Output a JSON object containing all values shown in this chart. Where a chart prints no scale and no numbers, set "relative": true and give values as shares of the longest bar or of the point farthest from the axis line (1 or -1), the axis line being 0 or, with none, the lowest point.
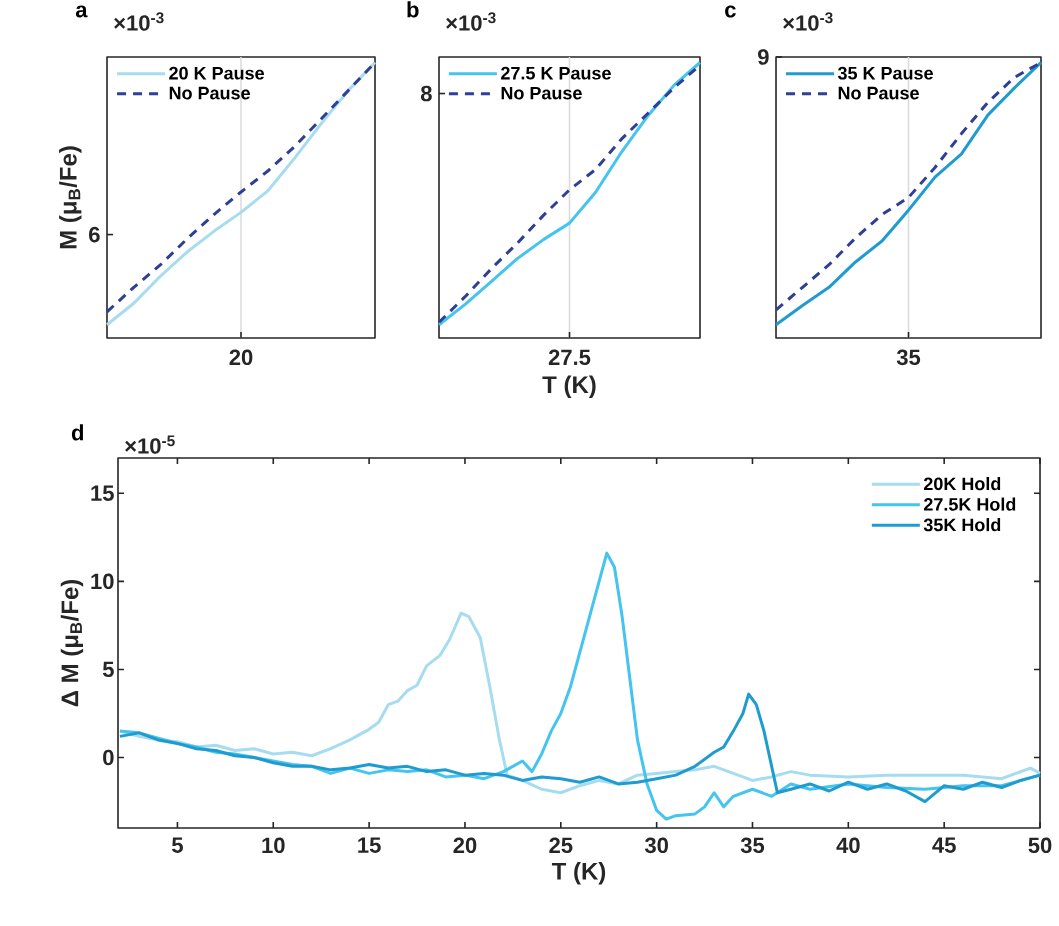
{
  "chart_data": [
    {
      "type": "line",
      "title": "a",
      "ylabel": "M (μ$_{B}$/Fe)",
      "annotations": [
        "×10$^{-3}$",
        "6"
      ],
      "relative": true,
      "categories": [
        null,
        null,
        null,
        null,
        null,
        null,
        null,
        null,
        null,
        null,
        null
      ],
      "ref_lines": [
        {
          "axis": "x",
          "label": "20",
          "color": "#dcdcdc"
        }
      ],
      "legend": "top left",
      "series": [
        {
          "name": "20 K Pause",
          "color": "#a6dcf0",
          "line_style": "solid",
          "values": [
            0.048,
            0.126,
            0.225,
            0.313,
            0.388,
            0.456,
            0.534,
            0.653,
            0.779,
            0.898,
            1.0
          ]
        },
        {
          "name": "No Pause",
          "color": "#2e3f96",
          "line_style": "dashed",
          "values": [
            0.095,
            0.184,
            0.266,
            0.361,
            0.449,
            0.53,
            0.606,
            0.695,
            0.796,
            0.898,
            1.0
          ]
        }
      ]
    },
    {
      "type": "line",
      "title": "b",
      "xlabel": "T (K)",
      "annotations": [
        "×10$^{-3}$",
        "8"
      ],
      "relative": true,
      "categories": [
        null,
        null,
        null,
        null,
        null,
        null,
        null,
        null,
        null,
        null,
        null
      ],
      "ref_lines": [
        {
          "axis": "x",
          "label": "27.5",
          "color": "#dcdcdc"
        }
      ],
      "legend": "top left",
      "series": [
        {
          "name": "27.5 K Pause",
          "color": "#44c4ee",
          "line_style": "solid",
          "values": [
            0.048,
            0.122,
            0.205,
            0.288,
            0.357,
            0.417,
            0.529,
            0.676,
            0.806,
            0.917,
            1.0
          ]
        },
        {
          "name": "No Pause",
          "color": "#2e3f96",
          "line_style": "dashed",
          "values": [
            0.057,
            0.15,
            0.251,
            0.344,
            0.445,
            0.538,
            0.612,
            0.723,
            0.815,
            0.908,
            0.99
          ]
        }
      ]
    },
    {
      "type": "line",
      "title": "c",
      "annotations": [
        "×10$^{-3}$",
        "9"
      ],
      "relative": true,
      "categories": [
        null,
        null,
        null,
        null,
        null,
        null,
        null,
        null,
        null,
        null,
        null
      ],
      "ref_lines": [
        {
          "axis": "x",
          "label": "35",
          "color": "#dcdcdc"
        }
      ],
      "legend": "top left",
      "series": [
        {
          "name": "35 K Pause",
          "color": "#1f9bcf",
          "line_style": "solid",
          "values": [
            0.048,
            0.118,
            0.184,
            0.276,
            0.352,
            0.464,
            0.584,
            0.668,
            0.81,
            0.908,
            1.0
          ]
        },
        {
          "name": "No Pause",
          "color": "#2e3f96",
          "line_style": "dashed",
          "values": [
            0.102,
            0.184,
            0.266,
            0.363,
            0.448,
            0.51,
            0.619,
            0.742,
            0.856,
            0.946,
            1.0
          ]
        }
      ]
    },
    {
      "type": "line",
      "title": "d",
      "xlabel": "T (K)",
      "ylabel": "Δ M (μ$_{B}$/Fe)",
      "annotations": [
        "×10$^{-5}$"
      ],
      "xlim": [
        1.9,
        50
      ],
      "ylim": [
        -4,
        17
      ],
      "xticks": [
        5,
        10,
        15,
        20,
        25,
        30,
        35,
        40,
        45,
        50
      ],
      "yticks": [
        0,
        5,
        10,
        15
      ],
      "legend": "top right",
      "series": [
        {
          "name": "20K Hold",
          "color": "#a6dcf0",
          "line_style": "solid",
          "x": [
            2,
            3,
            4,
            5,
            6,
            7,
            8,
            9,
            10,
            11,
            12,
            13,
            14,
            15,
            15.5,
            16,
            16.5,
            17,
            17.5,
            18,
            18.7,
            19.2,
            19.8,
            20.2,
            20.8,
            21.3,
            21.8,
            22.2,
            23,
            24,
            25,
            26,
            27,
            28,
            29,
            30,
            31,
            32,
            33,
            34,
            35,
            36,
            37,
            38,
            40,
            42,
            44,
            46,
            48,
            49.5,
            50
          ],
          "values": [
            1.5,
            1.2,
            1.0,
            0.9,
            0.6,
            0.7,
            0.4,
            0.5,
            0.2,
            0.3,
            0.1,
            0.5,
            1.0,
            1.6,
            2.0,
            3.0,
            3.2,
            3.8,
            4.1,
            5.2,
            5.8,
            6.7,
            8.2,
            8.0,
            6.8,
            4.0,
            1.0,
            -1.0,
            -1.3,
            -1.8,
            -2.0,
            -1.6,
            -1.3,
            -1.5,
            -1.0,
            -0.9,
            -0.8,
            -0.7,
            -0.5,
            -0.9,
            -1.3,
            -1.1,
            -0.8,
            -1.0,
            -1.1,
            -1.0,
            -1.0,
            -1.0,
            -1.2,
            -0.6,
            -0.9
          ]
        },
        {
          "name": "27.5K Hold",
          "color": "#44c4ee",
          "line_style": "solid",
          "x": [
            2,
            3,
            4,
            5,
            6,
            7,
            8,
            9,
            10,
            11,
            12,
            13,
            14,
            15,
            16,
            17,
            18,
            19,
            20,
            21,
            22,
            22.5,
            23,
            23.5,
            24,
            24.5,
            25,
            25.5,
            26,
            26.5,
            27,
            27.4,
            27.8,
            28.2,
            28.6,
            29,
            29.5,
            30,
            30.5,
            31,
            32,
            32.5,
            33,
            33.5,
            34,
            35,
            36,
            37,
            38,
            40,
            42,
            44,
            46,
            48,
            50
          ],
          "values": [
            1.5,
            1.4,
            1.1,
            0.8,
            0.6,
            0.3,
            0.2,
            0.0,
            -0.2,
            -0.4,
            -0.5,
            -0.9,
            -0.6,
            -0.9,
            -0.7,
            -0.8,
            -0.7,
            -1.1,
            -1.0,
            -1.2,
            -0.8,
            -0.5,
            -0.2,
            -0.8,
            0.2,
            1.5,
            2.5,
            4.0,
            6.0,
            8.0,
            10.0,
            11.6,
            10.8,
            8.0,
            4.5,
            1.0,
            -1.5,
            -3.0,
            -3.5,
            -3.3,
            -3.2,
            -2.8,
            -2.0,
            -2.8,
            -2.2,
            -1.8,
            -2.2,
            -1.5,
            -1.8,
            -1.5,
            -1.7,
            -1.8,
            -1.6,
            -1.6,
            -1.0
          ]
        },
        {
          "name": "35K Hold",
          "color": "#1f9bcf",
          "line_style": "solid",
          "x": [
            2,
            3,
            4,
            5,
            6,
            7,
            8,
            9,
            10,
            11,
            12,
            13,
            14,
            15,
            16,
            17,
            18,
            19,
            20,
            21,
            22,
            23,
            24,
            25,
            26,
            27,
            28,
            29,
            30,
            31,
            32,
            33,
            33.5,
            34,
            34.5,
            34.8,
            35.2,
            35.6,
            36,
            36.3,
            37,
            38,
            39,
            40,
            41,
            42,
            43,
            44,
            45,
            46,
            47,
            48,
            49,
            50
          ],
          "values": [
            1.2,
            1.4,
            1.0,
            0.8,
            0.5,
            0.4,
            0.1,
            0.0,
            -0.3,
            -0.5,
            -0.5,
            -0.7,
            -0.6,
            -0.4,
            -0.6,
            -0.5,
            -0.8,
            -0.7,
            -1.0,
            -0.9,
            -1.0,
            -1.3,
            -1.1,
            -1.2,
            -1.4,
            -1.1,
            -1.5,
            -1.4,
            -1.2,
            -1.0,
            -0.5,
            0.3,
            0.6,
            1.5,
            2.5,
            3.6,
            3.0,
            1.5,
            -0.5,
            -2.0,
            -1.8,
            -1.5,
            -1.9,
            -1.4,
            -1.8,
            -1.5,
            -1.9,
            -2.5,
            -1.6,
            -1.8,
            -1.4,
            -1.7,
            -1.3,
            -1.0
          ]
        }
      ]
    }
  ]
}
